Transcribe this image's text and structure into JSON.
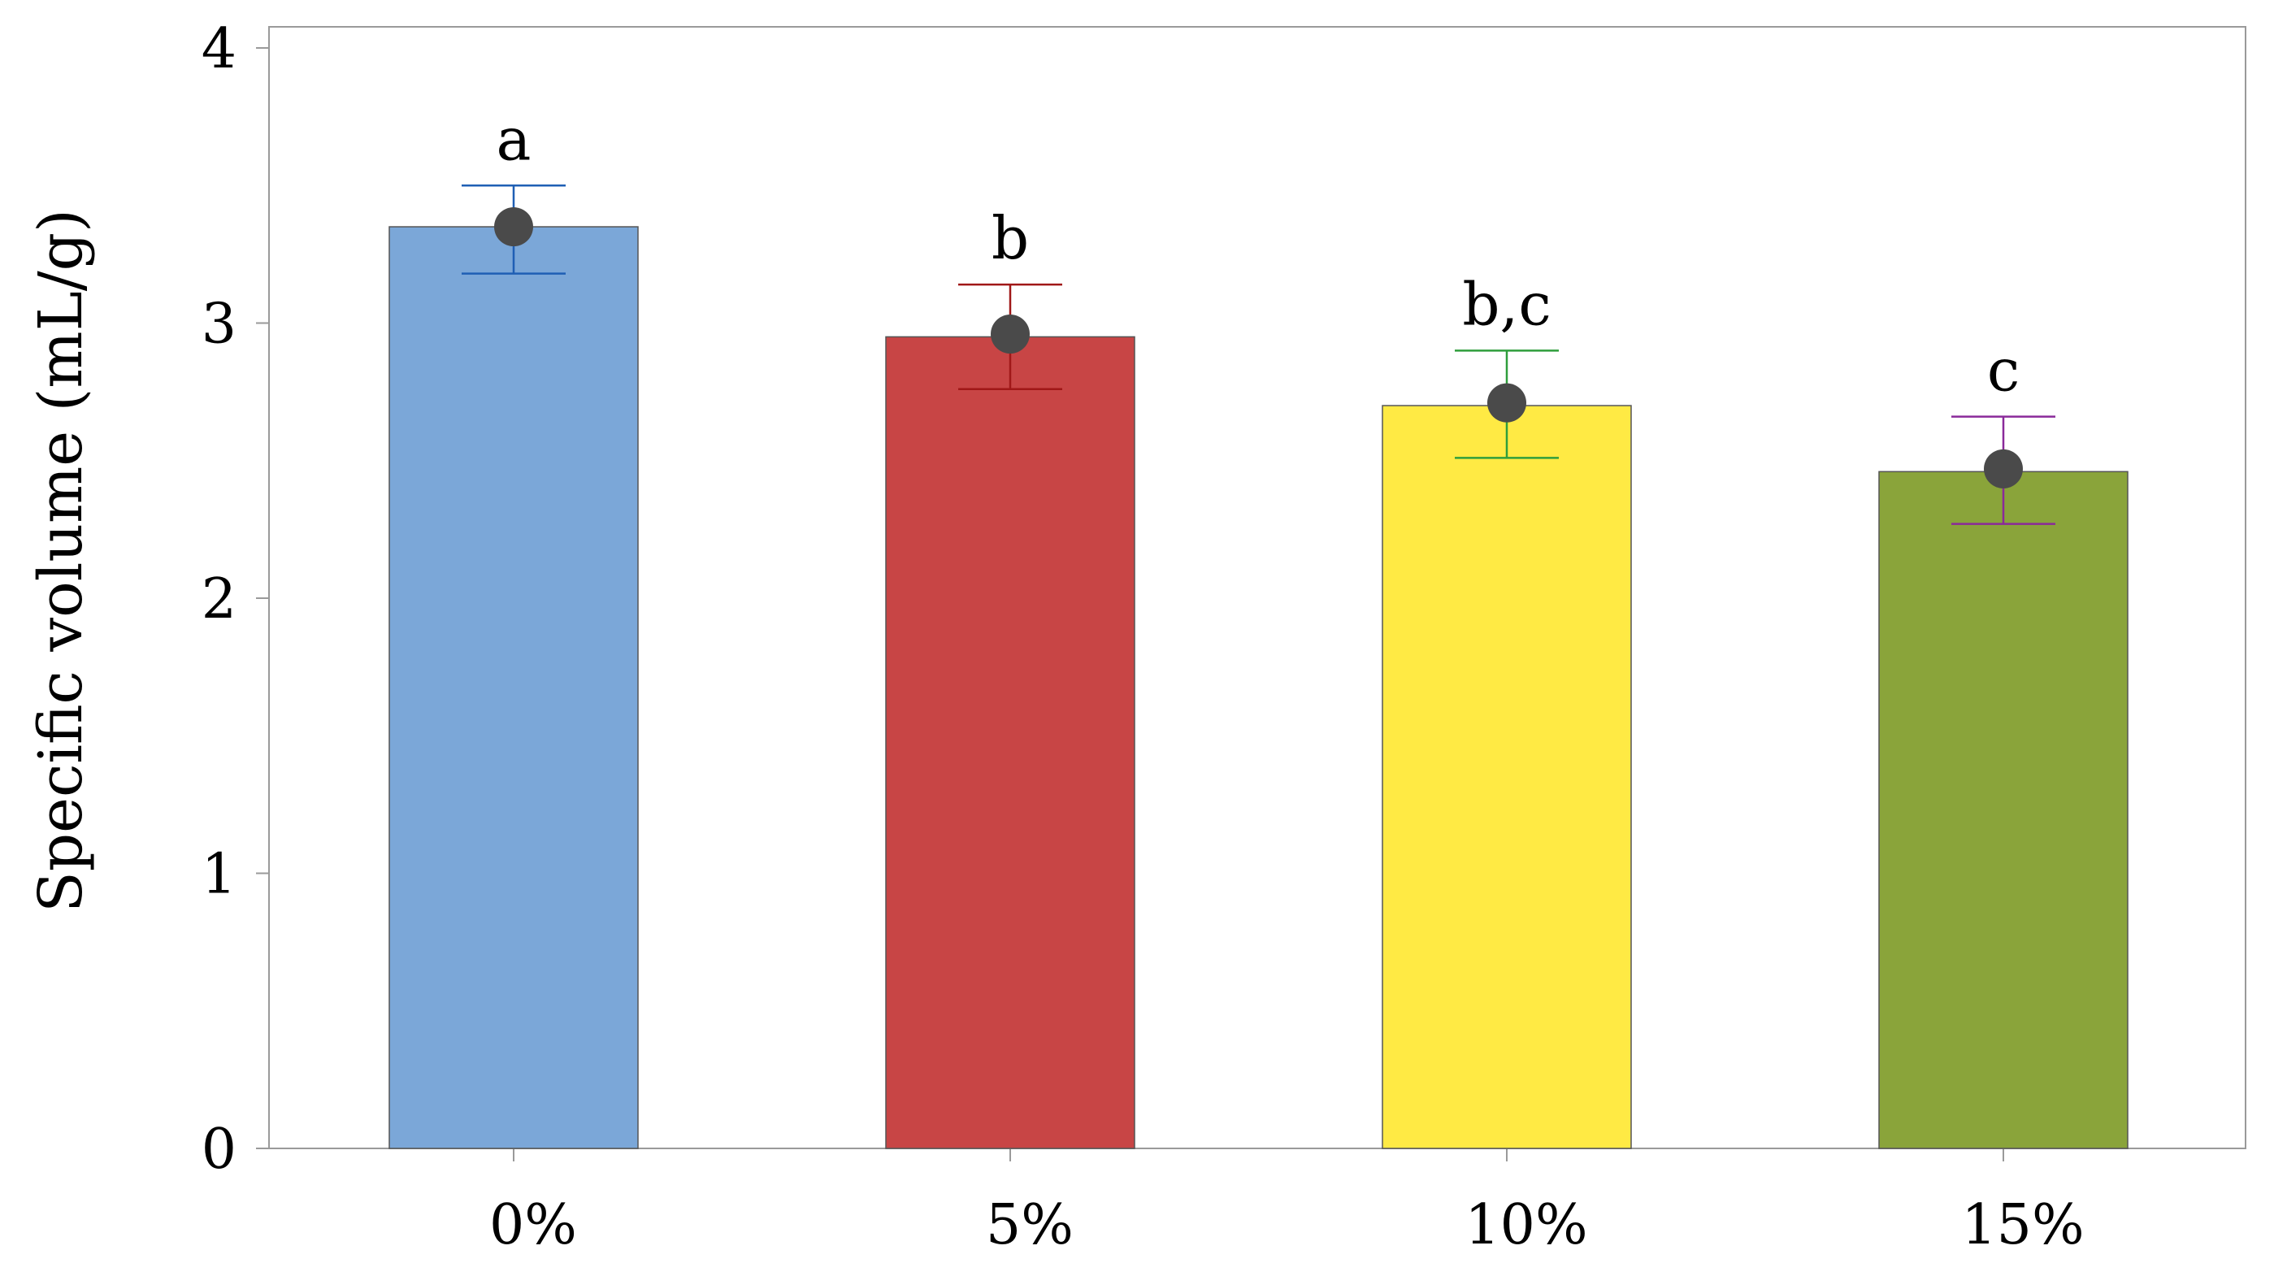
{
  "chart_data": {
    "type": "bar",
    "title": "",
    "xlabel": "",
    "ylabel": "Specific volume (mL/g)",
    "ylim": [
      0,
      4
    ],
    "yticks": [
      0,
      1,
      2,
      3,
      4
    ],
    "grid": false,
    "legend": "none",
    "categories": [
      "0%",
      "5%",
      "10%",
      "15%"
    ],
    "values": [
      3.35,
      2.95,
      2.7,
      2.46
    ],
    "points": [
      3.35,
      2.96,
      2.71,
      2.47
    ],
    "error_low": [
      3.18,
      2.76,
      2.51,
      2.27
    ],
    "error_high": [
      3.5,
      3.14,
      2.9,
      2.66
    ],
    "significance_labels": [
      "a",
      "b",
      "b,c",
      "c"
    ],
    "bar_colors": [
      "#7ba7d8",
      "#c84545",
      "#ffea44",
      "#8aa43a"
    ],
    "error_colors": [
      "#1f5fb4",
      "#a01818",
      "#2f9e3c",
      "#8a2a9a"
    ],
    "point_color": "#4a4a4a"
  }
}
